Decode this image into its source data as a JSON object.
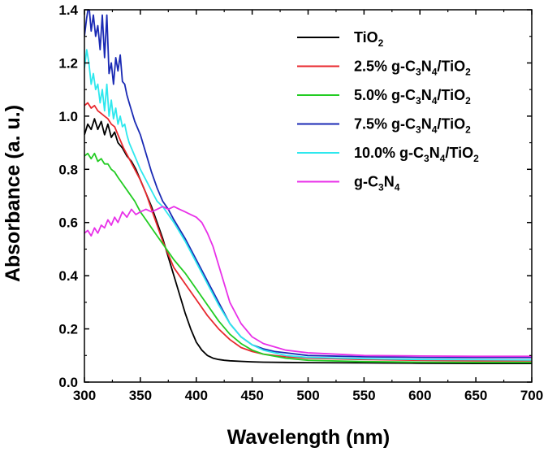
{
  "chart_data": {
    "type": "line",
    "xlabel": "Wavelength  (nm)",
    "ylabel": "Absorbance  (a. u.)",
    "xlim": [
      300,
      700
    ],
    "ylim": [
      0.0,
      1.4
    ],
    "xticks": [
      300,
      350,
      400,
      450,
      500,
      550,
      600,
      650,
      700
    ],
    "yticks": [
      0.0,
      0.2,
      0.4,
      0.6,
      0.8,
      1.0,
      1.2,
      1.4
    ],
    "xtick_labels": [
      "300",
      "350",
      "400",
      "450",
      "500",
      "550",
      "600",
      "650",
      "700"
    ],
    "ytick_labels": [
      "0.0",
      "0.2",
      "0.4",
      "0.6",
      "0.8",
      "1.0",
      "1.2",
      "1.4"
    ],
    "grid": false,
    "legend_position": "top-right",
    "series": [
      {
        "name": "TiO2",
        "legend": {
          "base": "TiO",
          "parts": [
            [
              "2",
              "sub"
            ]
          ]
        },
        "color": "#000000",
        "x": [
          300,
          303,
          306,
          309,
          312,
          315,
          318,
          321,
          324,
          327,
          330,
          334,
          338,
          342,
          346,
          350,
          355,
          360,
          365,
          370,
          375,
          380,
          385,
          390,
          395,
          400,
          405,
          410,
          415,
          420,
          425,
          430,
          440,
          450,
          460,
          480,
          500,
          550,
          600,
          650,
          700
        ],
        "y": [
          0.93,
          0.97,
          0.95,
          0.99,
          0.95,
          0.98,
          0.93,
          0.97,
          0.92,
          0.94,
          0.9,
          0.88,
          0.85,
          0.83,
          0.8,
          0.76,
          0.71,
          0.66,
          0.6,
          0.54,
          0.47,
          0.4,
          0.33,
          0.26,
          0.2,
          0.15,
          0.12,
          0.1,
          0.09,
          0.085,
          0.082,
          0.08,
          0.078,
          0.076,
          0.075,
          0.074,
          0.073,
          0.072,
          0.071,
          0.07,
          0.07
        ]
      },
      {
        "name": "2.5% g-C3N4/TiO2",
        "legend": {
          "base": "2.5% g-C",
          "parts": [
            [
              "3",
              "sub"
            ],
            [
              "N",
              "base"
            ],
            [
              "4",
              "sub"
            ],
            [
              "/TiO",
              "base"
            ],
            [
              "2",
              "sub"
            ]
          ]
        },
        "color": "#e8282e",
        "x": [
          300,
          303,
          306,
          309,
          312,
          315,
          318,
          321,
          324,
          327,
          330,
          335,
          340,
          345,
          350,
          355,
          360,
          365,
          370,
          375,
          380,
          390,
          400,
          410,
          420,
          430,
          440,
          450,
          460,
          480,
          500,
          550,
          600,
          650,
          700
        ],
        "y": [
          1.04,
          1.05,
          1.03,
          1.04,
          1.02,
          1.01,
          1.0,
          0.99,
          0.97,
          0.96,
          0.93,
          0.88,
          0.84,
          0.8,
          0.76,
          0.71,
          0.65,
          0.59,
          0.53,
          0.48,
          0.43,
          0.37,
          0.31,
          0.25,
          0.2,
          0.16,
          0.13,
          0.115,
          0.105,
          0.095,
          0.09,
          0.085,
          0.082,
          0.08,
          0.08
        ]
      },
      {
        "name": "5.0% g-C3N4/TiO2",
        "legend": {
          "base": "5.0% g-C",
          "parts": [
            [
              "3",
              "sub"
            ],
            [
              "N",
              "base"
            ],
            [
              "4",
              "sub"
            ],
            [
              "/TiO",
              "base"
            ],
            [
              "2",
              "sub"
            ]
          ]
        },
        "color": "#22cc22",
        "x": [
          300,
          303,
          306,
          309,
          312,
          315,
          318,
          321,
          324,
          327,
          330,
          335,
          340,
          345,
          350,
          355,
          360,
          365,
          370,
          375,
          380,
          390,
          400,
          410,
          420,
          430,
          440,
          450,
          460,
          480,
          500,
          550,
          600,
          650,
          700
        ],
        "y": [
          0.85,
          0.86,
          0.84,
          0.86,
          0.83,
          0.84,
          0.82,
          0.82,
          0.8,
          0.79,
          0.77,
          0.74,
          0.71,
          0.68,
          0.64,
          0.61,
          0.58,
          0.55,
          0.52,
          0.49,
          0.46,
          0.41,
          0.35,
          0.29,
          0.23,
          0.18,
          0.145,
          0.12,
          0.105,
          0.09,
          0.082,
          0.077,
          0.075,
          0.074,
          0.074
        ]
      },
      {
        "name": "7.5% g-C3N4/TiO2",
        "legend": {
          "base": "7.5% g-C",
          "parts": [
            [
              "3",
              "sub"
            ],
            [
              "N",
              "base"
            ],
            [
              "4",
              "sub"
            ],
            [
              "/TiO",
              "base"
            ],
            [
              "2",
              "sub"
            ]
          ]
        },
        "color": "#1a2ab4",
        "x": [
          300,
          302,
          304,
          306,
          308,
          310,
          312,
          314,
          316,
          318,
          320,
          322,
          324,
          326,
          328,
          330,
          332,
          334,
          336,
          338,
          340,
          345,
          350,
          355,
          360,
          365,
          370,
          375,
          380,
          390,
          400,
          410,
          420,
          430,
          440,
          450,
          460,
          470,
          480,
          500,
          550,
          600,
          650,
          700
        ],
        "y": [
          1.3,
          1.37,
          1.42,
          1.32,
          1.38,
          1.3,
          1.34,
          1.25,
          1.38,
          1.22,
          1.38,
          1.16,
          1.2,
          1.12,
          1.22,
          1.17,
          1.23,
          1.13,
          1.12,
          1.08,
          1.05,
          0.98,
          0.93,
          0.86,
          0.79,
          0.73,
          0.68,
          0.65,
          0.61,
          0.54,
          0.46,
          0.38,
          0.3,
          0.22,
          0.17,
          0.14,
          0.125,
          0.115,
          0.11,
          0.1,
          0.095,
          0.093,
          0.092,
          0.092
        ]
      },
      {
        "name": "10.0% g-C3N4/TiO2",
        "legend": {
          "base": "10.0% g-C",
          "parts": [
            [
              "3",
              "sub"
            ],
            [
              "N",
              "base"
            ],
            [
              "4",
              "sub"
            ],
            [
              "/TiO",
              "base"
            ],
            [
              "2",
              "sub"
            ]
          ]
        },
        "color": "#2ee8ee",
        "x": [
          300,
          302,
          304,
          306,
          308,
          310,
          312,
          314,
          316,
          318,
          320,
          322,
          324,
          326,
          328,
          330,
          332,
          334,
          336,
          338,
          340,
          345,
          350,
          355,
          360,
          365,
          370,
          375,
          380,
          390,
          400,
          410,
          420,
          430,
          440,
          450,
          460,
          470,
          480,
          500,
          550,
          600,
          650,
          700
        ],
        "y": [
          1.18,
          1.25,
          1.2,
          1.12,
          1.16,
          1.1,
          1.12,
          1.05,
          1.1,
          1.02,
          1.12,
          1.0,
          1.06,
          0.99,
          1.03,
          0.97,
          1.0,
          0.96,
          0.97,
          0.93,
          0.9,
          0.85,
          0.8,
          0.76,
          0.72,
          0.68,
          0.66,
          0.63,
          0.6,
          0.53,
          0.45,
          0.37,
          0.29,
          0.22,
          0.17,
          0.14,
          0.12,
          0.11,
          0.1,
          0.093,
          0.088,
          0.085,
          0.084,
          0.083
        ]
      },
      {
        "name": "g-C3N4",
        "legend": {
          "base": "g-C",
          "parts": [
            [
              "3",
              "sub"
            ],
            [
              "N",
              "base"
            ],
            [
              "4",
              "sub"
            ]
          ]
        },
        "color": "#e830e8",
        "x": [
          300,
          303,
          306,
          309,
          312,
          315,
          318,
          321,
          324,
          327,
          330,
          334,
          338,
          342,
          346,
          350,
          355,
          360,
          365,
          370,
          375,
          380,
          385,
          390,
          395,
          400,
          405,
          410,
          415,
          420,
          425,
          430,
          440,
          450,
          460,
          480,
          500,
          550,
          600,
          650,
          700
        ],
        "y": [
          0.56,
          0.57,
          0.55,
          0.58,
          0.56,
          0.59,
          0.58,
          0.61,
          0.59,
          0.62,
          0.6,
          0.64,
          0.62,
          0.65,
          0.63,
          0.64,
          0.65,
          0.64,
          0.65,
          0.66,
          0.65,
          0.66,
          0.65,
          0.64,
          0.63,
          0.62,
          0.6,
          0.56,
          0.51,
          0.44,
          0.37,
          0.3,
          0.22,
          0.17,
          0.145,
          0.12,
          0.11,
          0.1,
          0.098,
          0.097,
          0.097
        ]
      }
    ]
  }
}
